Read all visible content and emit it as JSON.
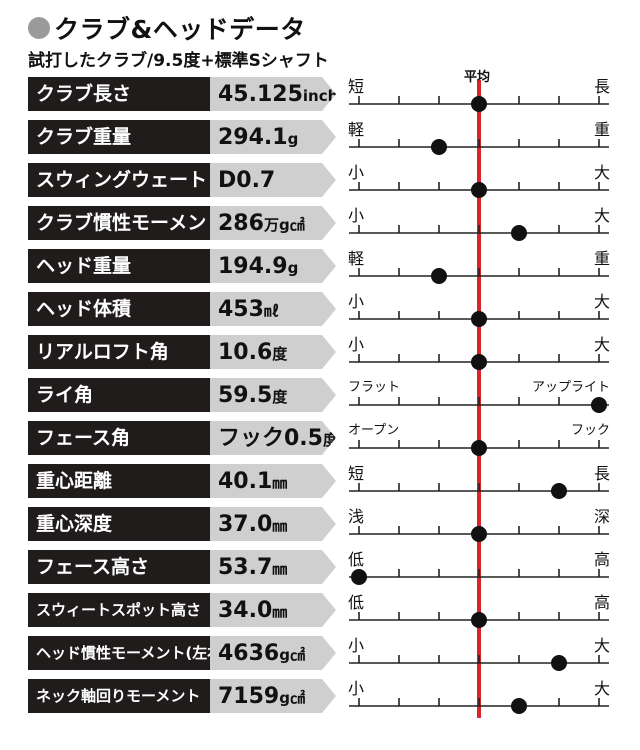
{
  "header": {
    "title": "クラブ&ヘッドデータ",
    "subtitle": "試打したクラブ/9.5度+標準Sシャフト",
    "bullet_color": "#9a9a9a"
  },
  "chart_data": {
    "type": "dot-scale",
    "average_label": "平均",
    "average_line_color": "#d8252c",
    "scale_range": [
      -3,
      3
    ],
    "ticks": 7,
    "rows": [
      {
        "label": "クラブ長さ",
        "value": "45.125",
        "unit": "inch",
        "left": "短",
        "right": "長",
        "position": 0
      },
      {
        "label": "クラブ重量",
        "value": "294.1",
        "unit": "g",
        "left": "軽",
        "right": "重",
        "position": -1
      },
      {
        "label": "スウィングウェート",
        "value": "D0.7",
        "unit": "",
        "left": "小",
        "right": "大",
        "position": 0
      },
      {
        "label": "クラブ慣性モーメント",
        "value": "286",
        "unit": "万g㎠",
        "left": "小",
        "right": "大",
        "position": 1
      },
      {
        "label": "ヘッド重量",
        "value": "194.9",
        "unit": "g",
        "left": "軽",
        "right": "重",
        "position": -1
      },
      {
        "label": "ヘッド体積",
        "value": "453",
        "unit": "㎖",
        "left": "小",
        "right": "大",
        "position": 0
      },
      {
        "label": "リアルロフト角",
        "value": "10.6",
        "unit": "度",
        "left": "小",
        "right": "大",
        "position": 0
      },
      {
        "label": "ライ角",
        "value": "59.5",
        "unit": "度",
        "left": "フラット",
        "right": "アップライト",
        "position": 3
      },
      {
        "label": "フェース角",
        "value": "フック0.5",
        "unit": "度",
        "left": "オープン",
        "right": "フック",
        "position": 0
      },
      {
        "label": "重心距離",
        "value": "40.1",
        "unit": "㎜",
        "left": "短",
        "right": "長",
        "position": 2
      },
      {
        "label": "重心深度",
        "value": "37.0",
        "unit": "㎜",
        "left": "浅",
        "right": "深",
        "position": 0
      },
      {
        "label": "フェース高さ",
        "value": "53.7",
        "unit": "㎜",
        "left": "低",
        "right": "高",
        "position": -3
      },
      {
        "label": "スウィートスポット高さ",
        "value": "34.0",
        "unit": "㎜",
        "left": "低",
        "right": "高",
        "position": 0
      },
      {
        "label": "ヘッド慣性モーメント(左右方向)",
        "value": "4636",
        "unit": "g㎠",
        "left": "小",
        "right": "大",
        "position": 2
      },
      {
        "label": "ネック軸回りモーメント",
        "value": "7159",
        "unit": "g㎠",
        "left": "小",
        "right": "大",
        "position": 1
      }
    ]
  }
}
